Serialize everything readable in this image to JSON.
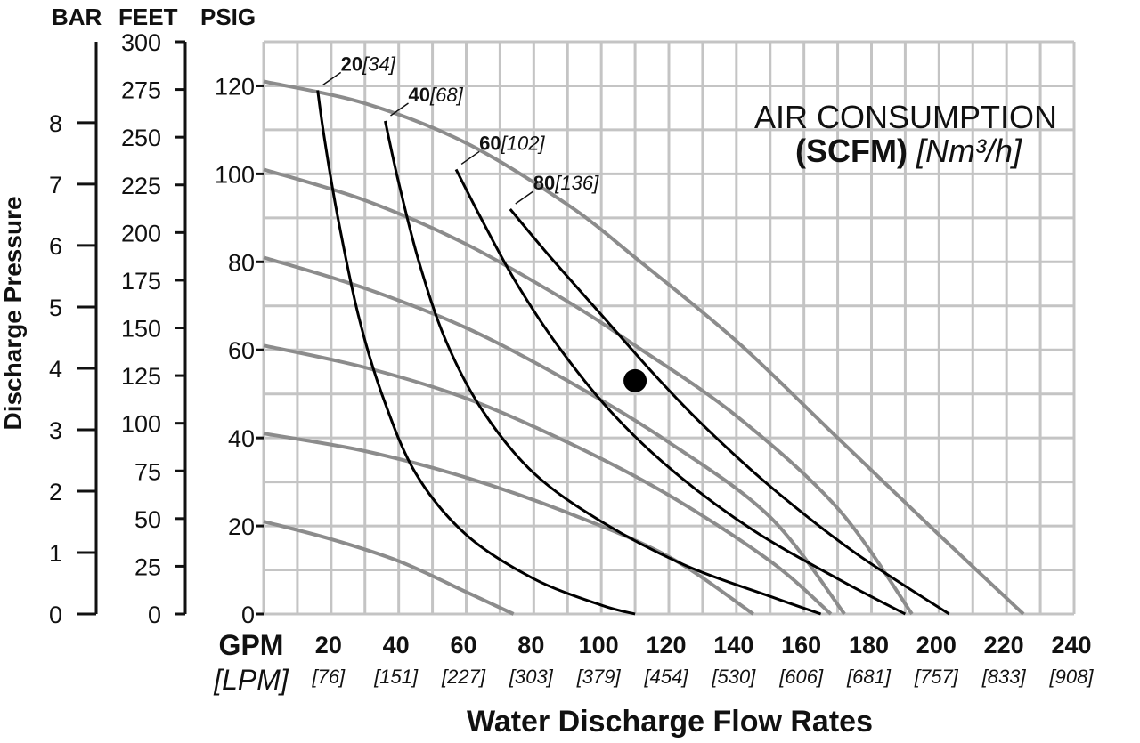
{
  "chart_data": {
    "type": "line",
    "title": "",
    "xlabel": "Water Discharge Flow Rates",
    "ylabel": "Discharge Pressure",
    "x_unit_primary": "GPM",
    "x_unit_secondary": "[LPM]",
    "x_ticks": [
      {
        "gpm": "20",
        "lpm": "[76]"
      },
      {
        "gpm": "40",
        "lpm": "[151]"
      },
      {
        "gpm": "60",
        "lpm": "[227]"
      },
      {
        "gpm": "80",
        "lpm": "[303]"
      },
      {
        "gpm": "100",
        "lpm": "[379]"
      },
      {
        "gpm": "120",
        "lpm": "[454]"
      },
      {
        "gpm": "140",
        "lpm": "[530]"
      },
      {
        "gpm": "160",
        "lpm": "[606]"
      },
      {
        "gpm": "180",
        "lpm": "[681]"
      },
      {
        "gpm": "200",
        "lpm": "[757]"
      },
      {
        "gpm": "220",
        "lpm": "[833]"
      },
      {
        "gpm": "240",
        "lpm": "[908]"
      }
    ],
    "xlim": [
      0,
      240
    ],
    "ylim_psig": [
      0,
      130
    ],
    "axes": {
      "psig": {
        "header": "PSIG",
        "ticks": [
          "0",
          "20",
          "40",
          "60",
          "80",
          "100",
          "120"
        ]
      },
      "feet": {
        "header": "FEET",
        "ticks": [
          "0",
          "25",
          "50",
          "75",
          "100",
          "125",
          "150",
          "175",
          "200",
          "225",
          "250",
          "275",
          "300"
        ]
      },
      "bar": {
        "header": "BAR",
        "ticks": [
          "0",
          "1",
          "2",
          "3",
          "4",
          "5",
          "6",
          "7",
          "8"
        ]
      }
    },
    "grid": true,
    "legend": {
      "line1": "AIR CONSUMPTION",
      "line2_bold": "(SCFM)",
      "line2_italic": "[Nm³/h]",
      "placement": "top-right"
    },
    "performance_curves": [
      {
        "x": [
          0,
          30,
          60,
          90,
          110,
          140,
          170,
          200,
          225
        ],
        "y": [
          121,
          116,
          107,
          93,
          81,
          62,
          40,
          18,
          0
        ]
      },
      {
        "x": [
          0,
          30,
          60,
          90,
          110,
          140,
          170,
          192
        ],
        "y": [
          101,
          94,
          84,
          71,
          61,
          45,
          24,
          0
        ]
      },
      {
        "x": [
          0,
          30,
          60,
          90,
          120,
          150,
          172
        ],
        "y": [
          81,
          74,
          65,
          53,
          39,
          22,
          0
        ]
      },
      {
        "x": [
          0,
          30,
          60,
          90,
          120,
          150,
          168
        ],
        "y": [
          61,
          56,
          49,
          39,
          27,
          12,
          0
        ]
      },
      {
        "x": [
          0,
          30,
          60,
          90,
          120,
          145
        ],
        "y": [
          41,
          37,
          31,
          23,
          13,
          0
        ]
      },
      {
        "x": [
          0,
          20,
          40,
          60,
          74
        ],
        "y": [
          21,
          17,
          12,
          5,
          0
        ]
      }
    ],
    "air_consumption_curves": [
      {
        "scfm": "20",
        "nm3h": "[34]",
        "x": [
          16,
          18,
          22,
          28,
          35,
          45,
          60,
          80,
          100,
          110
        ],
        "y": [
          119,
          108,
          90,
          68,
          50,
          32,
          18,
          8,
          2,
          0
        ]
      },
      {
        "scfm": "40",
        "nm3h": "[68]",
        "x": [
          36,
          40,
          46,
          54,
          65,
          80,
          100,
          125,
          150,
          165
        ],
        "y": [
          112,
          98,
          80,
          62,
          46,
          32,
          21,
          11,
          4,
          0
        ]
      },
      {
        "scfm": "60",
        "nm3h": "[102]",
        "x": [
          57,
          65,
          75,
          88,
          104,
          122,
          145,
          170,
          190
        ],
        "y": [
          101,
          89,
          75,
          60,
          45,
          32,
          19,
          8,
          0
        ]
      },
      {
        "scfm": "80",
        "nm3h": "[136]",
        "x": [
          73,
          85,
          100,
          115,
          130,
          150,
          175,
          203
        ],
        "y": [
          92,
          81,
          68,
          55,
          43,
          29,
          14,
          0
        ]
      }
    ],
    "marker": {
      "x": 110,
      "y": 53
    }
  }
}
